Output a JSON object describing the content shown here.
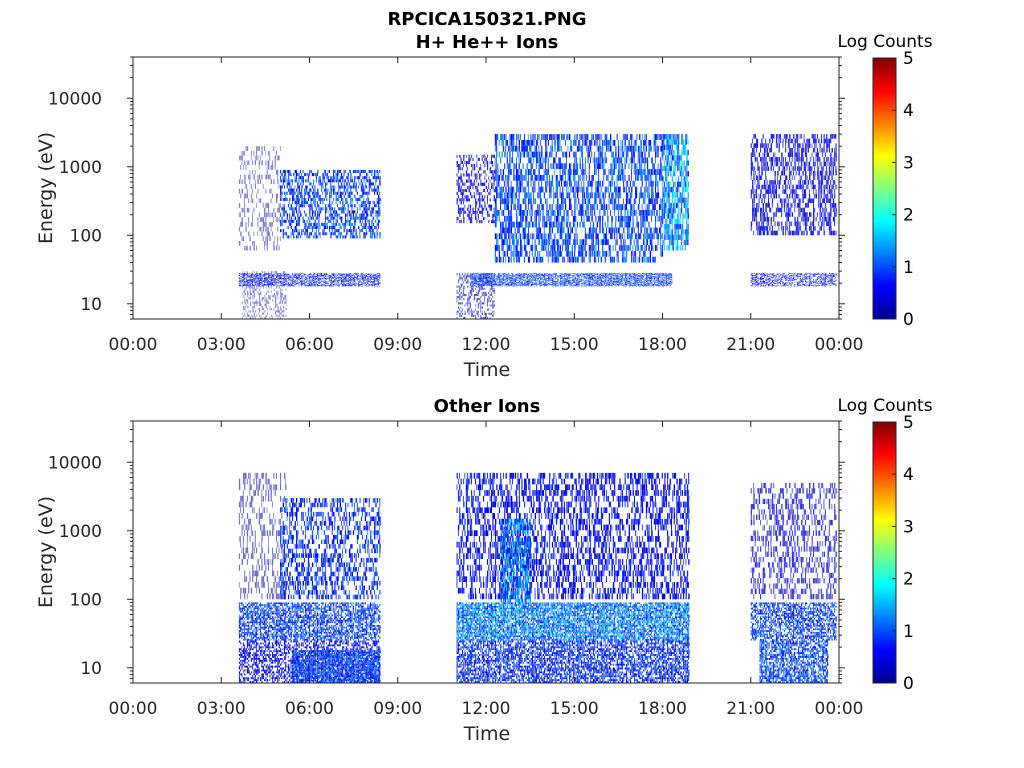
{
  "chart_data": [
    {
      "type": "heatmap",
      "title_line1": "RPCICA150321.PNG",
      "title_line2": "H+ He++ Ions",
      "xlabel": "Time",
      "ylabel": "Energy (eV)",
      "x_tick_labels": [
        "00:00",
        "03:00",
        "06:00",
        "09:00",
        "12:00",
        "15:00",
        "18:00",
        "21:00",
        "00:00"
      ],
      "x_range_hours": [
        0,
        24
      ],
      "y_scale": "log",
      "y_range_ev": [
        6,
        40000
      ],
      "y_tick_values": [
        10,
        100,
        1000,
        10000
      ],
      "y_tick_labels": [
        "10",
        "100",
        "1000",
        "10000"
      ],
      "colorbar": {
        "label": "Log Counts",
        "ticks": [
          "0",
          "1",
          "2",
          "3",
          "4",
          "5"
        ],
        "range": [
          0,
          5
        ],
        "colormap": "jet"
      },
      "grid": false,
      "data_intervals_hours": [
        [
          3.6,
          8.4
        ],
        [
          11.0,
          18.9
        ],
        [
          21.0,
          23.95
        ]
      ],
      "regions": [
        {
          "t0": 3.6,
          "t1": 5.0,
          "e0": 60,
          "e1": 2000,
          "level": 0.15,
          "density": 0.35
        },
        {
          "t0": 3.7,
          "t1": 5.2,
          "e0": 6,
          "e1": 30,
          "level": 0.1,
          "density": 0.4
        },
        {
          "t0": 5.0,
          "t1": 8.4,
          "e0": 90,
          "e1": 900,
          "level": 0.9,
          "density": 0.55
        },
        {
          "t0": 3.6,
          "t1": 8.4,
          "e0": 18,
          "e1": 28,
          "level": 0.7,
          "density": 0.6
        },
        {
          "t0": 11.0,
          "t1": 12.3,
          "e0": 150,
          "e1": 1500,
          "level": 0.5,
          "density": 0.45
        },
        {
          "t0": 11.0,
          "t1": 12.3,
          "e0": 6,
          "e1": 28,
          "level": 0.3,
          "density": 0.45
        },
        {
          "t0": 12.3,
          "t1": 18.0,
          "e0": 40,
          "e1": 3000,
          "level": 0.95,
          "density": 0.6
        },
        {
          "t0": 11.5,
          "t1": 18.3,
          "e0": 18,
          "e1": 28,
          "level": 0.9,
          "density": 0.7
        },
        {
          "t0": 18.0,
          "t1": 18.9,
          "e0": 60,
          "e1": 3000,
          "level": 1.3,
          "density": 0.8
        },
        {
          "t0": 21.0,
          "t1": 23.9,
          "e0": 100,
          "e1": 3000,
          "level": 0.5,
          "density": 0.55
        },
        {
          "t0": 21.0,
          "t1": 23.9,
          "e0": 18,
          "e1": 28,
          "level": 0.6,
          "density": 0.5
        }
      ]
    },
    {
      "type": "heatmap",
      "title": "Other Ions",
      "xlabel": "Time",
      "ylabel": "Energy (eV)",
      "x_tick_labels": [
        "00:00",
        "03:00",
        "06:00",
        "09:00",
        "12:00",
        "15:00",
        "18:00",
        "21:00",
        "00:00"
      ],
      "x_range_hours": [
        0,
        24
      ],
      "y_scale": "log",
      "y_range_ev": [
        6,
        40000
      ],
      "y_tick_values": [
        10,
        100,
        1000,
        10000
      ],
      "y_tick_labels": [
        "10",
        "100",
        "1000",
        "10000"
      ],
      "colorbar": {
        "label": "Log Counts",
        "ticks": [
          "0",
          "1",
          "2",
          "3",
          "4",
          "5"
        ],
        "range": [
          0,
          5
        ],
        "colormap": "jet"
      },
      "grid": false,
      "data_intervals_hours": [
        [
          3.6,
          8.4
        ],
        [
          11.0,
          18.9
        ],
        [
          21.0,
          23.95
        ]
      ],
      "regions": [
        {
          "t0": 3.6,
          "t1": 5.2,
          "e0": 100,
          "e1": 7000,
          "level": 0.2,
          "density": 0.35
        },
        {
          "t0": 5.0,
          "t1": 8.4,
          "e0": 100,
          "e1": 3000,
          "level": 0.8,
          "density": 0.45
        },
        {
          "t0": 3.6,
          "t1": 8.4,
          "e0": 25,
          "e1": 90,
          "level": 0.9,
          "density": 0.7
        },
        {
          "t0": 3.6,
          "t1": 8.4,
          "e0": 6,
          "e1": 25,
          "level": 0.6,
          "density": 0.55
        },
        {
          "t0": 5.4,
          "t1": 8.4,
          "e0": 6,
          "e1": 18,
          "level": 0.95,
          "density": 0.85
        },
        {
          "t0": 11.0,
          "t1": 18.9,
          "e0": 100,
          "e1": 7000,
          "level": 0.6,
          "density": 0.5
        },
        {
          "t0": 12.5,
          "t1": 13.5,
          "e0": 90,
          "e1": 1500,
          "level": 1.2,
          "density": 0.7
        },
        {
          "t0": 11.0,
          "t1": 18.9,
          "e0": 25,
          "e1": 90,
          "level": 1.2,
          "density": 0.85
        },
        {
          "t0": 11.0,
          "t1": 18.9,
          "e0": 6,
          "e1": 25,
          "level": 0.8,
          "density": 0.7
        },
        {
          "t0": 21.0,
          "t1": 23.9,
          "e0": 100,
          "e1": 5000,
          "level": 0.4,
          "density": 0.4
        },
        {
          "t0": 21.0,
          "t1": 23.9,
          "e0": 25,
          "e1": 90,
          "level": 0.9,
          "density": 0.65
        },
        {
          "t0": 21.3,
          "t1": 23.6,
          "e0": 6,
          "e1": 25,
          "level": 0.95,
          "density": 0.75
        }
      ]
    }
  ]
}
